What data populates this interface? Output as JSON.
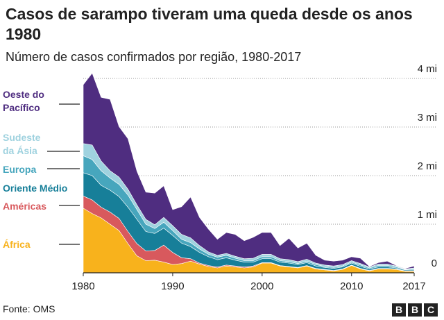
{
  "chart_data": {
    "type": "stacked_area",
    "title": "Casos de sarampo tiveram uma queda desde os anos 1980",
    "subtitle": "Número de casos confirmados por região, 1980-2017",
    "source": "Fonte: OMS",
    "logo": [
      "B",
      "B",
      "C"
    ],
    "x": [
      1980,
      1981,
      1982,
      1983,
      1984,
      1985,
      1986,
      1987,
      1988,
      1989,
      1990,
      1991,
      1992,
      1993,
      1994,
      1995,
      1996,
      1997,
      1998,
      1999,
      2000,
      2001,
      2002,
      2003,
      2004,
      2005,
      2006,
      2007,
      2008,
      2009,
      2010,
      2011,
      2012,
      2013,
      2014,
      2015,
      2016,
      2017
    ],
    "xlim": [
      1980,
      2017
    ],
    "xticks": [
      1980,
      1990,
      2000,
      2010,
      2017
    ],
    "ylim": [
      0,
      4
    ],
    "yticks": [
      0,
      {
        "value": 1,
        "label": "1 mi"
      },
      {
        "value": 2,
        "label": "2 mi"
      },
      {
        "value": 3,
        "label": "3 mi"
      },
      {
        "value": 4,
        "label": "4 mi"
      }
    ],
    "grid": true,
    "series": [
      {
        "name": "África",
        "color": "#f8b21c",
        "values": [
          1.33,
          1.22,
          1.13,
          1.0,
          0.87,
          0.6,
          0.35,
          0.25,
          0.26,
          0.22,
          0.17,
          0.19,
          0.24,
          0.18,
          0.13,
          0.1,
          0.14,
          0.12,
          0.1,
          0.12,
          0.2,
          0.2,
          0.14,
          0.12,
          0.1,
          0.14,
          0.08,
          0.06,
          0.04,
          0.07,
          0.15,
          0.08,
          0.04,
          0.08,
          0.08,
          0.07,
          0.03,
          0.03
        ]
      },
      {
        "name": "Américas",
        "color": "#d8595d",
        "values": [
          0.25,
          0.28,
          0.22,
          0.25,
          0.25,
          0.25,
          0.25,
          0.2,
          0.2,
          0.35,
          0.25,
          0.12,
          0.05,
          0.02,
          0.02,
          0.02,
          0.02,
          0.02,
          0.02,
          0.02,
          0.01,
          0.01,
          0.01,
          0.01,
          0.01,
          0.01,
          0.01,
          0.01,
          0.01,
          0.01,
          0.01,
          0.01,
          0.01,
          0.01,
          0.01,
          0.01,
          0.01,
          0.01
        ]
      },
      {
        "name": "Oriente Médio",
        "color": "#177f99",
        "values": [
          0.48,
          0.5,
          0.45,
          0.45,
          0.45,
          0.5,
          0.5,
          0.4,
          0.35,
          0.35,
          0.35,
          0.3,
          0.25,
          0.22,
          0.18,
          0.15,
          0.15,
          0.12,
          0.1,
          0.08,
          0.08,
          0.08,
          0.07,
          0.07,
          0.06,
          0.06,
          0.05,
          0.04,
          0.04,
          0.04,
          0.04,
          0.04,
          0.03,
          0.03,
          0.03,
          0.02,
          0.02,
          0.02
        ]
      },
      {
        "name": "Europa",
        "color": "#47a6bd",
        "values": [
          0.35,
          0.33,
          0.3,
          0.25,
          0.25,
          0.25,
          0.2,
          0.15,
          0.1,
          0.12,
          0.1,
          0.08,
          0.08,
          0.07,
          0.05,
          0.05,
          0.05,
          0.04,
          0.03,
          0.03,
          0.04,
          0.04,
          0.03,
          0.03,
          0.02,
          0.03,
          0.03,
          0.02,
          0.02,
          0.02,
          0.02,
          0.03,
          0.02,
          0.03,
          0.03,
          0.02,
          0.01,
          0.02
        ]
      },
      {
        "name": "Sudeste da Ásia",
        "color": "#9fd2df",
        "values": [
          0.25,
          0.3,
          0.2,
          0.15,
          0.15,
          0.12,
          0.1,
          0.1,
          0.08,
          0.1,
          0.1,
          0.1,
          0.1,
          0.07,
          0.05,
          0.04,
          0.04,
          0.04,
          0.04,
          0.05,
          0.05,
          0.05,
          0.04,
          0.04,
          0.04,
          0.04,
          0.03,
          0.03,
          0.03,
          0.03,
          0.03,
          0.03,
          0.02,
          0.03,
          0.03,
          0.02,
          0.01,
          0.02
        ]
      },
      {
        "name": "Oeste do Pacífico",
        "color": "#4f2d80",
        "values": [
          1.21,
          1.48,
          1.31,
          1.47,
          1.04,
          1.04,
          0.69,
          0.56,
          0.65,
          0.65,
          0.33,
          0.57,
          0.84,
          0.58,
          0.47,
          0.33,
          0.43,
          0.45,
          0.37,
          0.43,
          0.45,
          0.45,
          0.27,
          0.44,
          0.28,
          0.33,
          0.16,
          0.1,
          0.1,
          0.09,
          0.08,
          0.11,
          0.01,
          0.03,
          0.06,
          0.01,
          0.01,
          0.04
        ]
      }
    ]
  }
}
